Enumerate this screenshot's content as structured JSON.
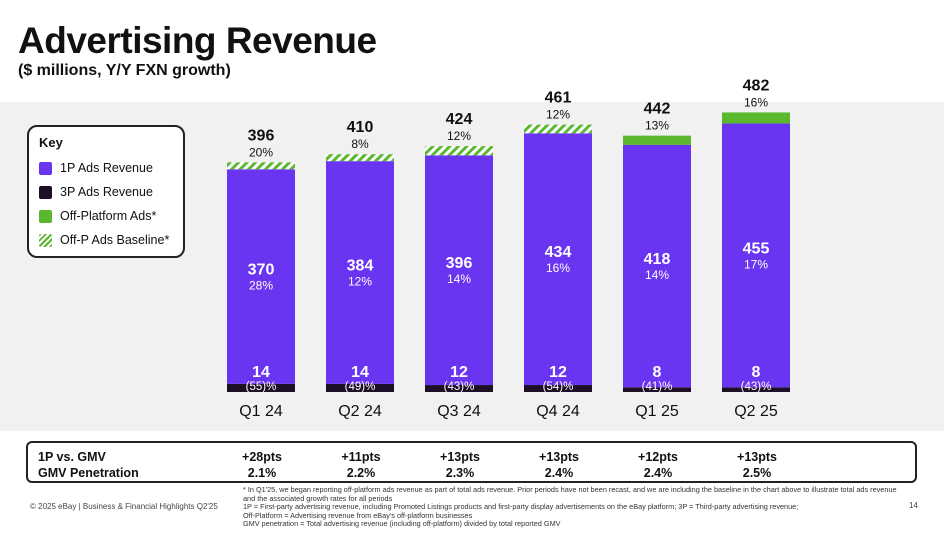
{
  "title": "Advertising Revenue",
  "subtitle": "($ millions, Y/Y FXN growth)",
  "legend": {
    "title": "Key",
    "items": [
      {
        "label": "1P Ads Revenue",
        "color": "#6a35f0"
      },
      {
        "label": "3P Ads Revenue",
        "color": "#1d0f25"
      },
      {
        "label": "Off-Platform Ads*",
        "color": "#5bb82e"
      },
      {
        "label": "Off-P Ads Baseline*",
        "color": "#5bb82e",
        "pattern": "hatched"
      }
    ]
  },
  "colors": {
    "p1": "#6a35f0",
    "p3": "#1d0f25",
    "offp": "#5bb82e",
    "hatch": "#5bb82e"
  },
  "chart_data": {
    "type": "bar",
    "stacked": true,
    "categories": [
      "Q1 24",
      "Q2 24",
      "Q3 24",
      "Q4 24",
      "Q1 25",
      "Q2 25"
    ],
    "series": [
      {
        "name": "3P Ads Revenue",
        "values": [
          14,
          14,
          12,
          12,
          8,
          8
        ],
        "growth": [
          "(55)%",
          "(49)%",
          "(43)%",
          "(54)%",
          "(41)%",
          "(43)%"
        ]
      },
      {
        "name": "1P Ads Revenue",
        "values": [
          370,
          384,
          396,
          434,
          418,
          455
        ],
        "growth": [
          "28%",
          "12%",
          "14%",
          "16%",
          "14%",
          "17%"
        ]
      },
      {
        "name": "Off-P Ads Baseline*",
        "values": [
          12,
          12,
          16,
          15,
          0,
          0
        ]
      },
      {
        "name": "Off-Platform Ads*",
        "values": [
          0,
          0,
          0,
          0,
          16,
          19
        ]
      }
    ],
    "totals": [
      396,
      410,
      424,
      461,
      442,
      482
    ],
    "total_growth": [
      "20%",
      "8%",
      "12%",
      "12%",
      "13%",
      "16%"
    ],
    "ylim": [
      0,
      500
    ]
  },
  "metrics": {
    "row1_label": "1P vs. GMV",
    "row2_label": "GMV Penetration",
    "row1_values": [
      "+28pts",
      "+11pts",
      "+13pts",
      "+13pts",
      "+12pts",
      "+13pts"
    ],
    "row2_values": [
      "2.1%",
      "2.2%",
      "2.3%",
      "2.4%",
      "2.4%",
      "2.5%"
    ]
  },
  "footer": {
    "copyright": "© 2025 eBay | Business & Financial Highlights Q2'25",
    "page": "14",
    "notes": [
      "* In Q1'25, we began reporting off-platform ads revenue as part of total ads revenue. Prior periods have not been recast, and we are including the baseline in the chart above to illustrate total ads revenue and the associated growth rates for all periods",
      "1P = First-party advertising revenue, including Promoted Listings products and first-party display advertisements on the eBay platform; 3P = Third-party advertising revenue;",
      "Off-Platform = Advertising revenue from eBay's off-platform businesses",
      "GMV penetration = Total advertising revenue (including off-platform) divided by total reported GMV"
    ]
  }
}
